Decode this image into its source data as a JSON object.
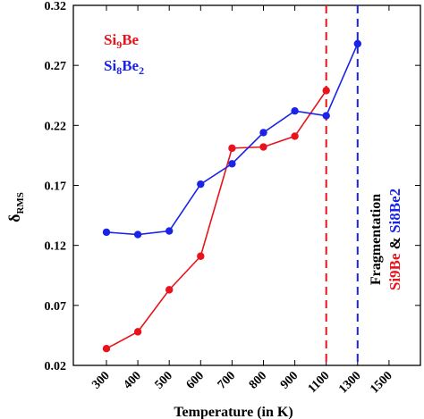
{
  "chart_data": {
    "type": "line",
    "title": "",
    "xlabel": "Temperature (in K)",
    "ylabel_main": "δ",
    "ylabel_sub": "RMS",
    "x_tick_labels": [
      "300",
      "400",
      "500",
      "600",
      "700",
      "800",
      "900",
      "1100",
      "1300",
      "1500"
    ],
    "y_ticks": [
      0.02,
      0.07,
      0.12,
      0.17,
      0.22,
      0.27,
      0.32
    ],
    "y_tick_labels": [
      "0.02",
      "0.07",
      "0.12",
      "0.17",
      "0.22",
      "0.27",
      "0.32"
    ],
    "ylim": [
      0.02,
      0.32
    ],
    "grid": false,
    "legend_position": "top-left",
    "series": [
      {
        "name_main": "Si",
        "name_sub": "9",
        "name_tail": "Be",
        "color": "#e8141c",
        "x": [
          "300",
          "400",
          "500",
          "600",
          "700",
          "800",
          "900",
          "1100"
        ],
        "values": [
          0.034,
          0.048,
          0.083,
          0.111,
          0.201,
          0.202,
          0.211,
          0.249
        ]
      },
      {
        "name_main": "Si",
        "name_sub": "8",
        "name_tail": "Be",
        "name_sub2": "2",
        "color": "#1a23e6",
        "x": [
          "300",
          "400",
          "500",
          "600",
          "700",
          "800",
          "900",
          "1100",
          "1300"
        ],
        "values": [
          0.131,
          0.129,
          0.132,
          0.171,
          0.188,
          0.214,
          0.232,
          0.228,
          0.288
        ]
      }
    ],
    "vlines": [
      {
        "x": "1100",
        "color": "#e8141c",
        "style": "dashed"
      },
      {
        "x": "1300",
        "color": "#1a23e6",
        "style": "dashed"
      }
    ],
    "annotation": {
      "line1": "Fragmentation",
      "red_part": "Si9Be",
      "amp": " & ",
      "blue_part": "Si8Be2"
    }
  }
}
